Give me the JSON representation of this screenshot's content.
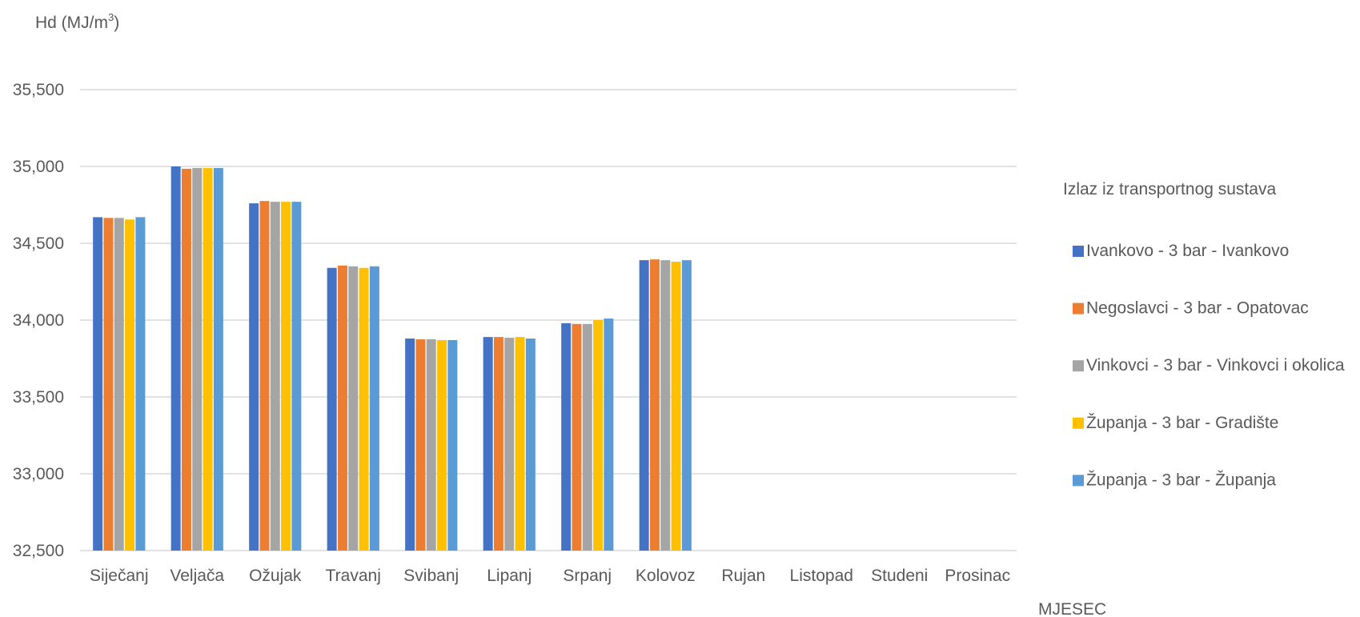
{
  "chart_data": {
    "type": "bar",
    "ylabel_main": "Hd (MJ/m",
    "ylabel_sup": "3",
    "ylabel_close": ")",
    "xlabel": "MJESEC",
    "ylim": [
      32.5,
      35.5
    ],
    "yticks": [
      32.5,
      33.0,
      33.5,
      34.0,
      34.5,
      35.0,
      35.5
    ],
    "ytick_labels": [
      "32,500",
      "33,000",
      "33,500",
      "34,000",
      "34,500",
      "35,000",
      "35,500"
    ],
    "grid": true,
    "legend_title": "Izlaz iz transportnog sustava",
    "legend_position": "right",
    "categories": [
      "Siječanj",
      "Veljača",
      "Ožujak",
      "Travanj",
      "Svibanj",
      "Lipanj",
      "Srpanj",
      "Kolovoz",
      "Rujan",
      "Listopad",
      "Studeni",
      "Prosinac"
    ],
    "series": [
      {
        "name": "Ivankovo - 3 bar - Ivankovo",
        "color": "#4472C4",
        "values": [
          34.67,
          35.0,
          34.76,
          34.34,
          33.88,
          33.89,
          33.98,
          34.39,
          null,
          null,
          null,
          null
        ]
      },
      {
        "name": "Negoslavci - 3 bar - Opatovac",
        "color": "#ED7D31",
        "values": [
          34.665,
          34.985,
          34.775,
          34.355,
          33.875,
          33.89,
          33.975,
          34.395,
          null,
          null,
          null,
          null
        ]
      },
      {
        "name": "Vinkovci - 3 bar - Vinkovci i okolica",
        "color": "#A5A5A5",
        "values": [
          34.665,
          34.99,
          34.77,
          34.35,
          33.875,
          33.885,
          33.975,
          34.39,
          null,
          null,
          null,
          null
        ]
      },
      {
        "name": "Županja - 3 bar - Gradište",
        "color": "#FFC000",
        "values": [
          34.655,
          34.99,
          34.77,
          34.34,
          33.87,
          33.89,
          34.0,
          34.38,
          null,
          null,
          null,
          null
        ]
      },
      {
        "name": "Županja - 3 bar - Županja",
        "color": "#5B9BD5",
        "values": [
          34.67,
          34.99,
          34.77,
          34.35,
          33.87,
          33.88,
          34.01,
          34.39,
          null,
          null,
          null,
          null
        ]
      }
    ]
  }
}
